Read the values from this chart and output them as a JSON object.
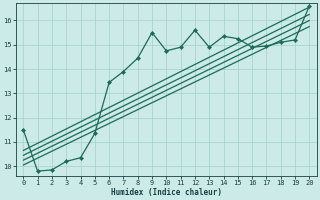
{
  "xlabel": "Humidex (Indice chaleur)",
  "bg_color": "#cceae8",
  "grid_color": "#aad4d0",
  "line_color": "#1a6b5a",
  "xlim": [
    -0.5,
    20.5
  ],
  "ylim": [
    9.6,
    16.7
  ],
  "yticks": [
    10,
    11,
    12,
    13,
    14,
    15,
    16
  ],
  "xticks": [
    0,
    1,
    2,
    3,
    4,
    5,
    6,
    7,
    8,
    9,
    10,
    11,
    12,
    13,
    14,
    15,
    16,
    17,
    18,
    19,
    20
  ],
  "wiggly_x": [
    0,
    1,
    2,
    3,
    4,
    5,
    6,
    7,
    8,
    9,
    10,
    11,
    12,
    13,
    14,
    15,
    16,
    17,
    18,
    19,
    20
  ],
  "wiggly_y": [
    11.5,
    9.8,
    9.85,
    10.2,
    10.35,
    11.35,
    13.45,
    13.9,
    14.45,
    15.5,
    14.75,
    14.9,
    15.6,
    14.9,
    15.35,
    15.25,
    14.9,
    14.95,
    15.1,
    15.2,
    16.6
  ],
  "linear_lines": [
    {
      "x": [
        0,
        20
      ],
      "y": [
        10.65,
        16.55
      ]
    },
    {
      "x": [
        0,
        20
      ],
      "y": [
        10.45,
        16.25
      ]
    },
    {
      "x": [
        0,
        20
      ],
      "y": [
        10.25,
        16.0
      ]
    },
    {
      "x": [
        0,
        20
      ],
      "y": [
        10.05,
        15.75
      ]
    }
  ]
}
